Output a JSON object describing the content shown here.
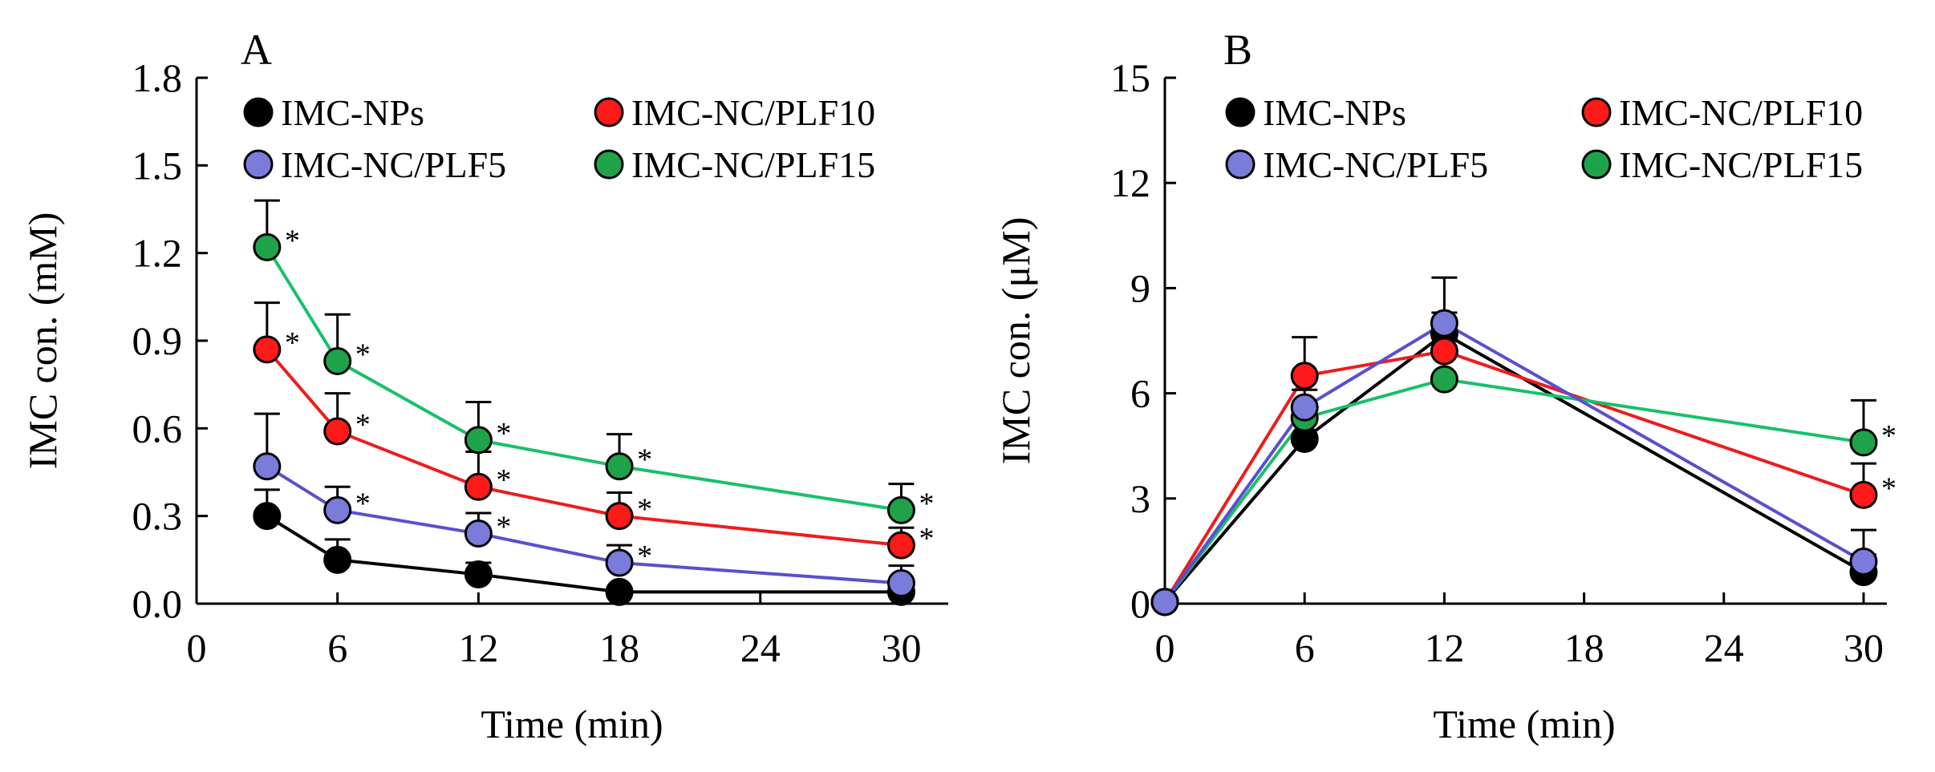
{
  "colors": {
    "IMC-NPs": "#000000",
    "IMC-NC/PLF5": "#7b7bdc",
    "IMC-NC/PLF10": "#ff1a1a",
    "IMC-NC/PLF15": "#1fa34a",
    "line_IMC-NPs": "#000000",
    "line_IMC-NC/PLF5": "#5a4fcf",
    "line_IMC-NC/PLF10": "#ee1c1c",
    "line_IMC-NC/PLF15": "#18c06a"
  },
  "chart_data": [
    {
      "panel": "A",
      "type": "line",
      "xlabel": "Time (min)",
      "ylabel": "IMC con. (mM)",
      "xlim": [
        0,
        32
      ],
      "ylim": [
        0,
        1.8
      ],
      "xticks": [
        0,
        6,
        12,
        18,
        24,
        30
      ],
      "yticks": [
        0.0,
        0.3,
        0.6,
        0.9,
        1.2,
        1.5,
        1.8
      ],
      "ytick_labels": [
        "0.0",
        "0.3",
        "0.6",
        "0.9",
        "1.2",
        "1.5",
        "1.8"
      ],
      "legend": {
        "entries": [
          "IMC-NPs",
          "IMC-NC/PLF10",
          "IMC-NC/PLF5",
          "IMC-NC/PLF15"
        ],
        "placement": "top"
      },
      "series": [
        {
          "name": "IMC-NPs",
          "x": [
            3,
            6,
            12,
            18,
            30
          ],
          "y": [
            0.3,
            0.15,
            0.1,
            0.04,
            0.04
          ],
          "err": [
            0.09,
            0.07,
            0.04,
            0.01,
            0.01
          ],
          "sig": [
            false,
            false,
            false,
            false,
            false
          ]
        },
        {
          "name": "IMC-NC/PLF5",
          "x": [
            3,
            6,
            12,
            18,
            30
          ],
          "y": [
            0.47,
            0.32,
            0.24,
            0.14,
            0.07
          ],
          "err": [
            0.18,
            0.08,
            0.07,
            0.06,
            0.06
          ],
          "sig": [
            false,
            true,
            true,
            true,
            false
          ]
        },
        {
          "name": "IMC-NC/PLF10",
          "x": [
            3,
            6,
            12,
            18,
            30
          ],
          "y": [
            0.87,
            0.59,
            0.4,
            0.3,
            0.2
          ],
          "err": [
            0.16,
            0.13,
            0.12,
            0.08,
            0.06
          ],
          "sig": [
            true,
            true,
            true,
            true,
            true
          ]
        },
        {
          "name": "IMC-NC/PLF15",
          "x": [
            3,
            6,
            12,
            18,
            30
          ],
          "y": [
            1.22,
            0.83,
            0.56,
            0.47,
            0.32
          ],
          "err": [
            0.16,
            0.16,
            0.13,
            0.11,
            0.09
          ],
          "sig": [
            true,
            true,
            true,
            true,
            true
          ]
        }
      ],
      "significance_marker": "*"
    },
    {
      "panel": "B",
      "type": "line",
      "xlabel": "Time (min)",
      "ylabel": "IMC con. (μM)",
      "xlim": [
        0,
        31
      ],
      "ylim": [
        0,
        15
      ],
      "xticks": [
        0,
        6,
        12,
        18,
        24,
        30
      ],
      "yticks": [
        0,
        3,
        6,
        9,
        12,
        15
      ],
      "ytick_labels": [
        "0",
        "3",
        "6",
        "9",
        "12",
        "15"
      ],
      "legend": {
        "entries": [
          "IMC-NPs",
          "IMC-NC/PLF10",
          "IMC-NC/PLF5",
          "IMC-NC/PLF15"
        ],
        "placement": "top"
      },
      "series": [
        {
          "name": "IMC-NPs",
          "x": [
            0,
            6,
            12,
            30
          ],
          "y": [
            0.05,
            4.7,
            7.7,
            0.9
          ],
          "err": [
            0,
            0,
            0.6,
            0.5
          ],
          "sig": [
            false,
            false,
            false,
            false
          ]
        },
        {
          "name": "IMC-NC/PLF10",
          "x": [
            0,
            6,
            12,
            30
          ],
          "y": [
            0.05,
            6.5,
            7.2,
            3.1
          ],
          "err": [
            0,
            1.1,
            0.5,
            0.9
          ],
          "sig": [
            false,
            false,
            false,
            true
          ]
        },
        {
          "name": "IMC-NC/PLF15",
          "x": [
            0,
            6,
            12,
            30
          ],
          "y": [
            0.05,
            5.3,
            6.4,
            4.6
          ],
          "err": [
            0,
            0,
            0,
            1.2
          ],
          "sig": [
            false,
            false,
            false,
            true
          ]
        },
        {
          "name": "IMC-NC/PLF5",
          "x": [
            0,
            6,
            12,
            30
          ],
          "y": [
            0.05,
            5.6,
            8.0,
            1.2
          ],
          "err": [
            0,
            0.5,
            1.3,
            0.9
          ],
          "sig": [
            false,
            false,
            false,
            false
          ]
        }
      ],
      "significance_marker": "*"
    }
  ]
}
